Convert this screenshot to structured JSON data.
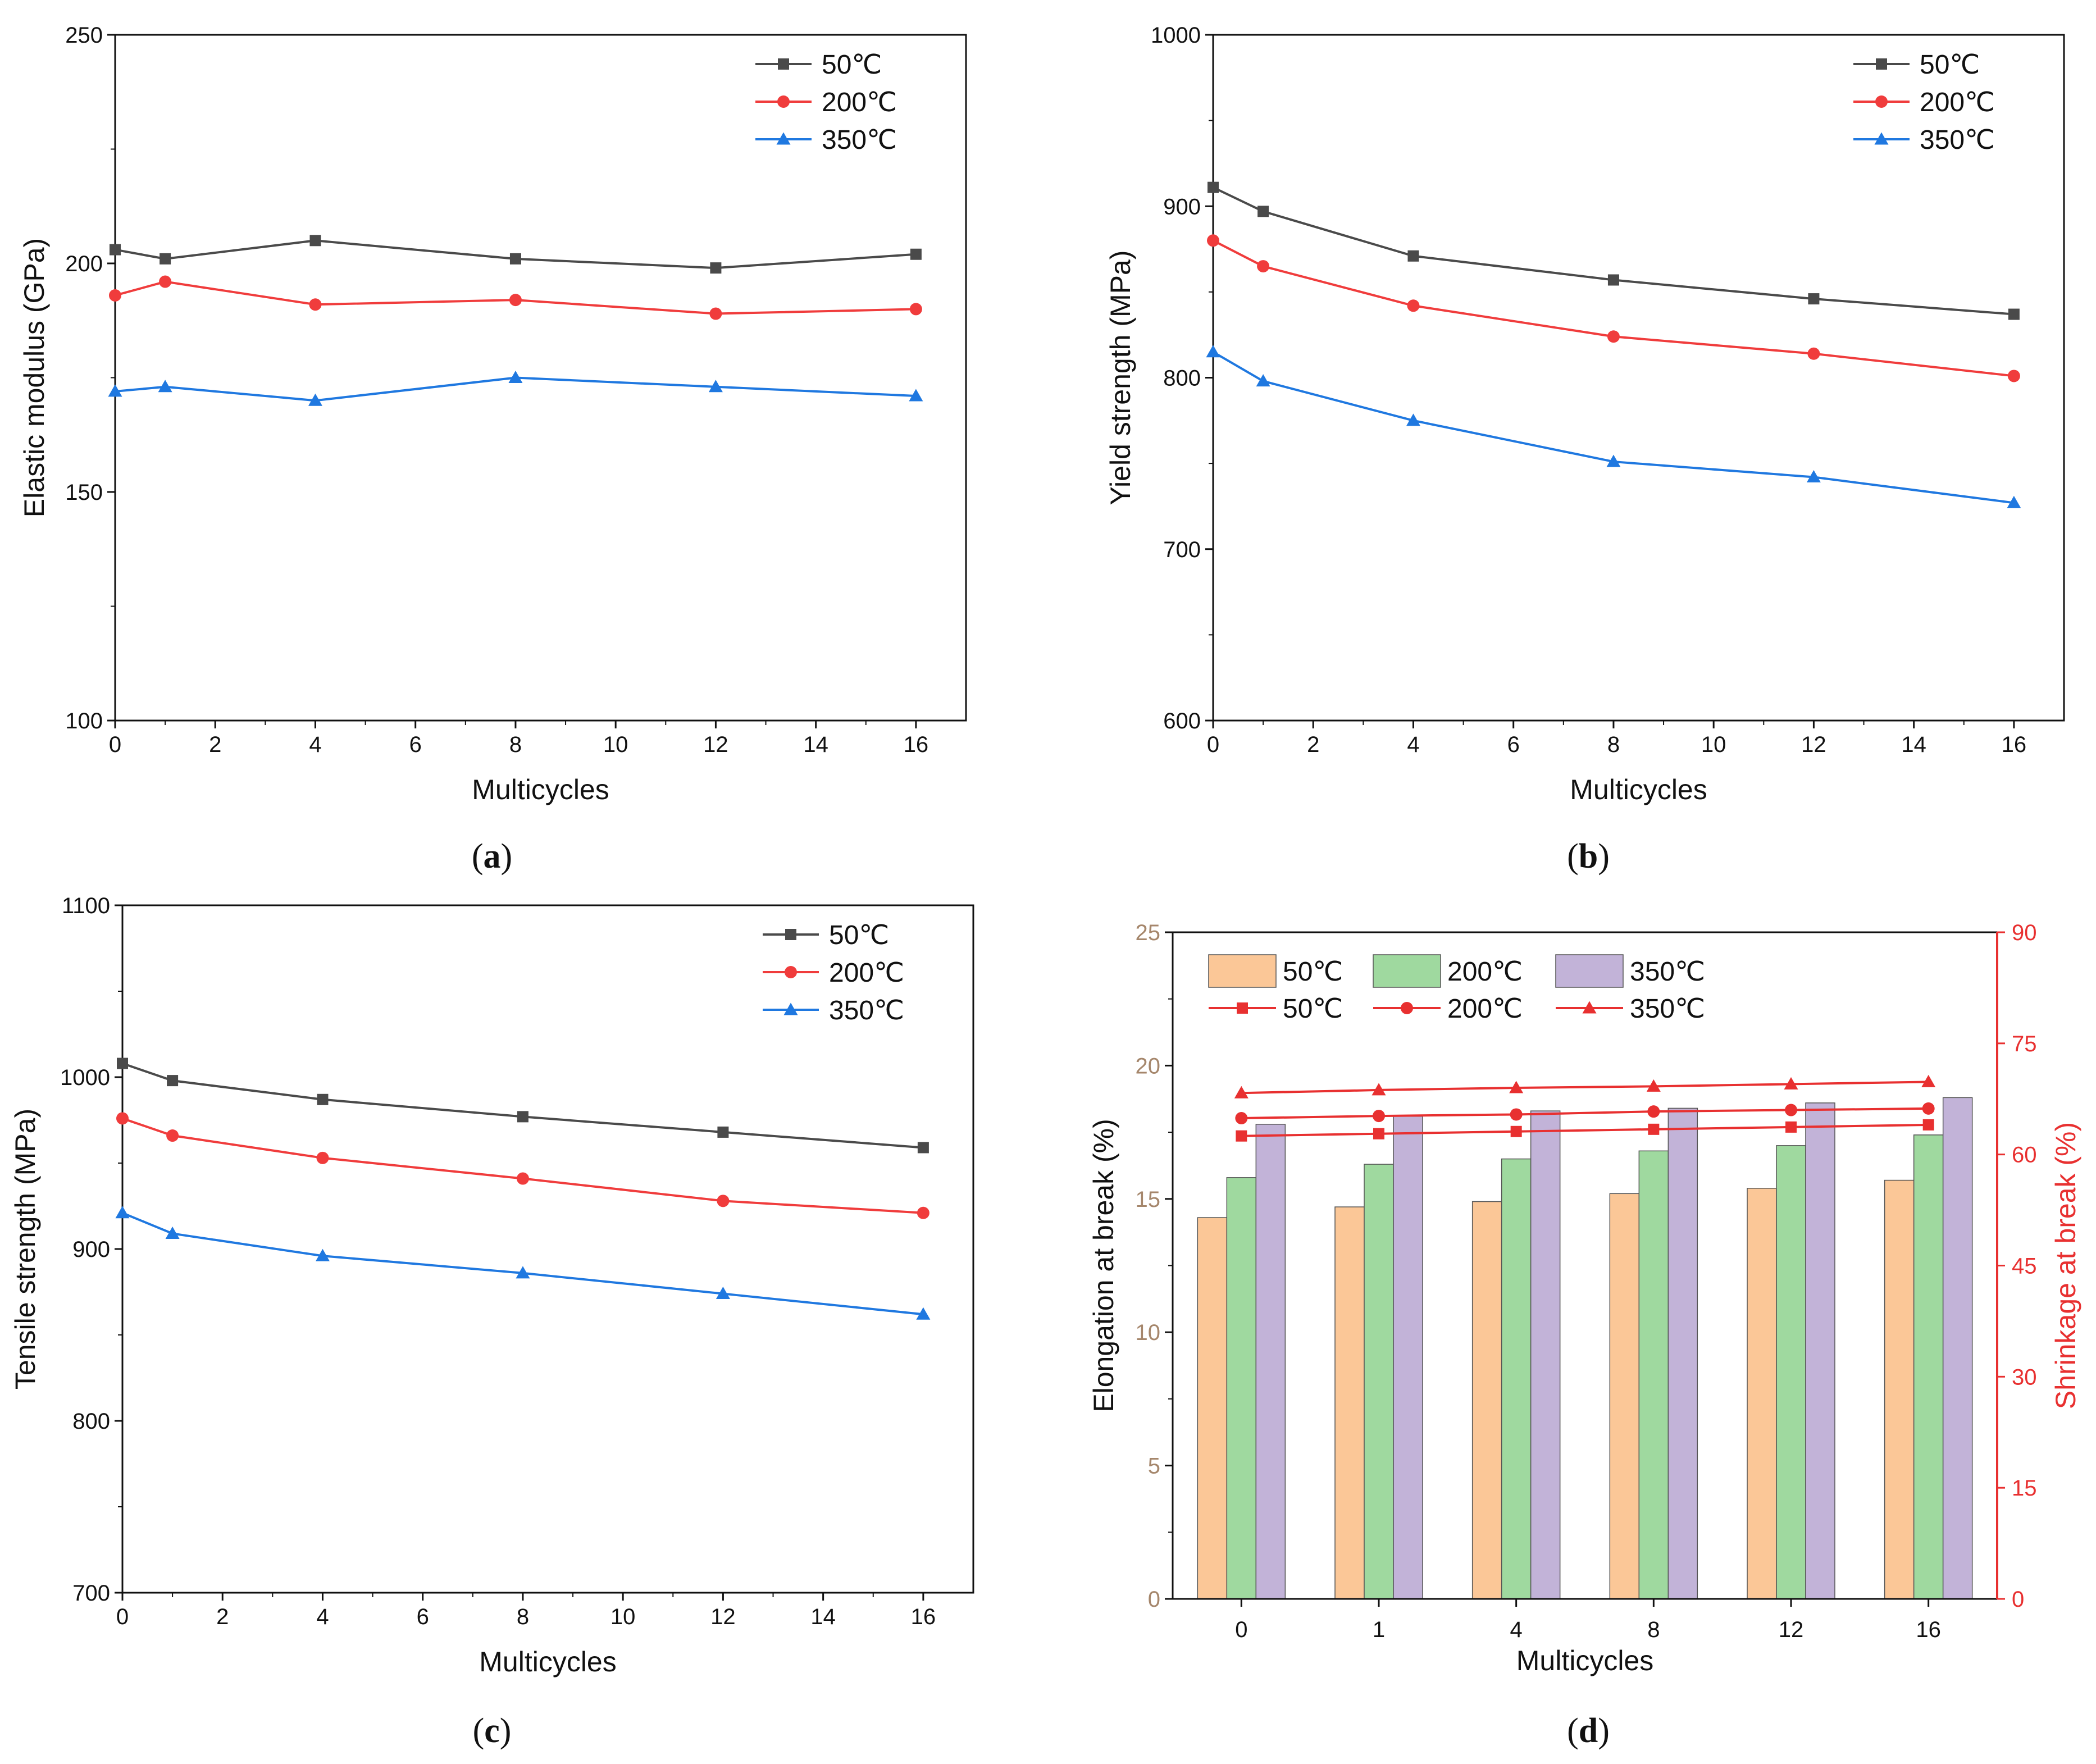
{
  "figure": {
    "panel_labels": [
      "a",
      "b",
      "c",
      "d"
    ],
    "colors": {
      "series_50": "#4a4a4a",
      "series_200": "#f03c3c",
      "series_350": "#1f78e0",
      "bar_50": "#fbc797",
      "bar_200": "#9fd99f",
      "bar_350": "#c2b3d8",
      "left_axis_d": "#a5866b",
      "right_axis_d": "#e83030",
      "axis": "#111111"
    }
  },
  "chart_data": [
    {
      "panel": "a",
      "type": "line",
      "xlabel": "Multicycles",
      "ylabel": "Elastic modulus (GPa)",
      "xlim": [
        0,
        17
      ],
      "ylim": [
        100,
        250
      ],
      "xticks": [
        0,
        2,
        4,
        6,
        8,
        10,
        12,
        14,
        16
      ],
      "yticks": [
        100,
        150,
        200,
        250
      ],
      "legend_position": "top-right",
      "x": [
        0,
        1,
        4,
        8,
        12,
        16
      ],
      "series": [
        {
          "name": "50℃",
          "marker": "square",
          "values": [
            203,
            201,
            205,
            201,
            199,
            202
          ]
        },
        {
          "name": "200℃",
          "marker": "circle",
          "values": [
            193,
            196,
            191,
            192,
            189,
            190
          ]
        },
        {
          "name": "350℃",
          "marker": "triangle",
          "values": [
            172,
            173,
            170,
            175,
            173,
            171
          ]
        }
      ]
    },
    {
      "panel": "b",
      "type": "line",
      "xlabel": "Multicycles",
      "ylabel": "Yield strength (MPa)",
      "xlim": [
        0,
        17
      ],
      "ylim": [
        600,
        1000
      ],
      "xticks": [
        0,
        2,
        4,
        6,
        8,
        10,
        12,
        14,
        16
      ],
      "yticks": [
        600,
        700,
        800,
        900,
        1000
      ],
      "legend_position": "top-right",
      "x": [
        0,
        1,
        4,
        8,
        12,
        16
      ],
      "series": [
        {
          "name": "50℃",
          "marker": "square",
          "values": [
            911,
            897,
            871,
            857,
            846,
            837
          ]
        },
        {
          "name": "200℃",
          "marker": "circle",
          "values": [
            880,
            865,
            842,
            824,
            814,
            801
          ]
        },
        {
          "name": "350℃",
          "marker": "triangle",
          "values": [
            815,
            798,
            775,
            751,
            742,
            727
          ]
        }
      ]
    },
    {
      "panel": "c",
      "type": "line",
      "xlabel": "Multicycles",
      "ylabel": "Tensile strength (MPa)",
      "xlim": [
        0,
        17
      ],
      "ylim": [
        700,
        1100
      ],
      "xticks": [
        0,
        2,
        4,
        6,
        8,
        10,
        12,
        14,
        16
      ],
      "yticks": [
        700,
        800,
        900,
        1000,
        1100
      ],
      "legend_position": "top-right",
      "x": [
        0,
        1,
        4,
        8,
        12,
        16
      ],
      "series": [
        {
          "name": "50℃",
          "marker": "square",
          "values": [
            1008,
            998,
            987,
            977,
            968,
            959
          ]
        },
        {
          "name": "200℃",
          "marker": "circle",
          "values": [
            976,
            966,
            953,
            941,
            928,
            921
          ]
        },
        {
          "name": "350℃",
          "marker": "triangle",
          "values": [
            921,
            909,
            896,
            886,
            874,
            862
          ]
        }
      ]
    },
    {
      "panel": "d",
      "type": "bar",
      "xlabel": "Multicycles",
      "ylabel": "Elongation at break (%)",
      "ylabel_right": "Shrinkage at break (%)",
      "categories": [
        "0",
        "1",
        "4",
        "8",
        "12",
        "16"
      ],
      "ylim": [
        0,
        25
      ],
      "yticks": [
        0,
        5,
        10,
        15,
        20,
        25
      ],
      "ylim_right": [
        0,
        90
      ],
      "yticks_right": [
        0,
        15,
        30,
        45,
        60,
        75,
        90
      ],
      "legend_position": "top-left",
      "series": [
        {
          "name": "50℃",
          "kind": "bar",
          "axis": "left",
          "values": [
            14.3,
            14.7,
            14.9,
            15.2,
            15.4,
            15.7
          ]
        },
        {
          "name": "200℃",
          "kind": "bar",
          "axis": "left",
          "values": [
            15.8,
            16.3,
            16.5,
            16.8,
            17.0,
            17.4
          ]
        },
        {
          "name": "350℃",
          "kind": "bar",
          "axis": "left",
          "values": [
            17.8,
            18.1,
            18.3,
            18.4,
            18.6,
            18.8
          ]
        },
        {
          "name": "50℃",
          "kind": "line",
          "marker": "square",
          "axis": "right",
          "values": [
            62.5,
            62.8,
            63.1,
            63.4,
            63.7,
            64.0
          ]
        },
        {
          "name": "200℃",
          "kind": "line",
          "marker": "circle",
          "axis": "right",
          "values": [
            64.9,
            65.2,
            65.4,
            65.8,
            66.0,
            66.2
          ]
        },
        {
          "name": "350℃",
          "kind": "line",
          "marker": "triangle",
          "axis": "right",
          "values": [
            68.3,
            68.7,
            69.0,
            69.2,
            69.5,
            69.8
          ]
        }
      ]
    }
  ]
}
